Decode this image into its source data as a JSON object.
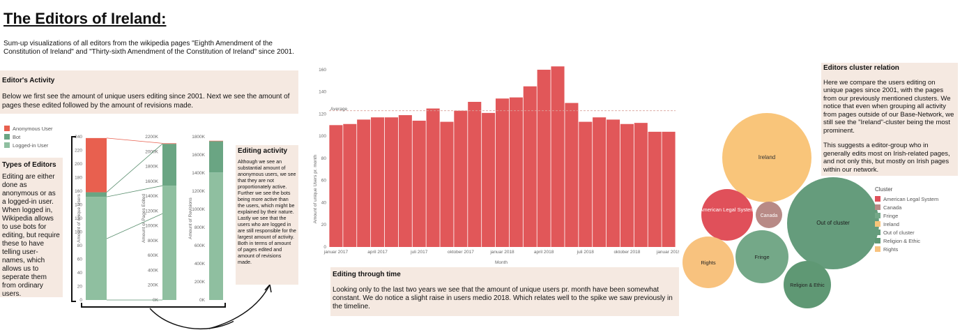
{
  "page": {
    "title": "The Editors of Ireland:",
    "intro": "Sum-up visualizations of all editors from the wikipedia pages \"Eighth Amendment of the Constitution of Ireland\" and \"Thirty-sixth Amendment of the Constitution of Ireland\" since 2001."
  },
  "activity": {
    "title": "Editor's Activity",
    "body": "Below we first see the amount of unique users editing since 2001. Next we see the amount of pages these edited followed by the amount of revisions made."
  },
  "types": {
    "title": "Types of Editors",
    "body": "Editing are either done as anonymous or as a logged-in user. When logged in, Wikipedia allows to use bots for editing, but require these to have telling user-names, which allows us to seperate them from ordinary users."
  },
  "editing_activity": {
    "title": "Editing activity",
    "body": "Although we see an substantial amount of anonymous users, we see that they are not proportionately active. Further we see the bots being more active than the users, which might be explained by their nature. Lastly we see that the users who are logged in are still responsible for the largest amount of activity. Both in terms of amount of pages edited and amount of revisions made."
  },
  "editing_time": {
    "title": "Editing through time",
    "body": "Looking only to the last two years we see that the amount of unique users pr. month have been somewhat constant. We do notice a slight raise in users medio 2018. Which relates well to the spike we saw previously in the timeline."
  },
  "cluster_text": {
    "title": "Editors cluster relation",
    "p1": "Here we compare the users editing on unique pages since 2001, with the pages from our previously mentioned clusters. We notice that even when grouping all activity from pages outside of our Base-Network, we still see the \"Ireland\"-cluster being the most prominent.",
    "p2": "This suggests a editor-group who in generally edits most on Irish-related pages, and not only this, but mostly on Irish pages within our network."
  },
  "colors": {
    "anonymous": "#e8604f",
    "bot": "#6aa583",
    "logged_in": "#8fbfa0",
    "bar": "#e15759",
    "bubble_ireland": "#f9c57a",
    "bubble_outofcluster": "#659c7c",
    "bubble_american": "#e0505a",
    "bubble_canada": "#b88a86",
    "bubble_fringe": "#74a888",
    "bubble_rights": "#f8c27e",
    "bubble_religion": "#5f9874"
  },
  "editor_types_legend": [
    "Anonymous User",
    "Bot",
    "Logged-in User"
  ],
  "chart_data": [
    {
      "type": "bar",
      "subtype": "stacked",
      "ylabel": "Amount of unique Users",
      "ylim": [
        0,
        250
      ],
      "yticks": [
        "240",
        "220",
        "200",
        "180",
        "160",
        "140",
        "120",
        "100",
        "80",
        "60",
        "40",
        "20",
        "0"
      ],
      "series": [
        {
          "name": "Logged-in User",
          "values": [
            158
          ]
        },
        {
          "name": "Bot",
          "values": [
            7
          ]
        },
        {
          "name": "Anonymous User",
          "values": [
            83
          ]
        }
      ]
    },
    {
      "type": "bar",
      "subtype": "stacked",
      "ylabel": "Amount of Pages Edited",
      "ylim": [
        0,
        2300000
      ],
      "yticks": [
        "2200K",
        "2000K",
        "1800K",
        "1600K",
        "1400K",
        "1200K",
        "1000K",
        "800K",
        "600K",
        "400K",
        "200K",
        "0K"
      ],
      "series": [
        {
          "name": "Logged-in User",
          "values": [
            1610000
          ]
        },
        {
          "name": "Bot",
          "values": [
            590000
          ]
        },
        {
          "name": "Anonymous User",
          "values": [
            8000
          ]
        }
      ]
    },
    {
      "type": "bar",
      "subtype": "stacked",
      "ylabel": "Amount of Revisions",
      "ylim": [
        0,
        1830000
      ],
      "yticks": [
        "1800K",
        "1600K",
        "1400K",
        "1200K",
        "1000K",
        "800K",
        "600K",
        "400K",
        "200K",
        "0K"
      ],
      "series": [
        {
          "name": "Logged-in User",
          "values": [
            1430000
          ]
        },
        {
          "name": "Bot",
          "values": [
            350000
          ]
        },
        {
          "name": "Anonymous User",
          "values": [
            5000
          ]
        }
      ]
    },
    {
      "type": "bar",
      "xlabel": "Month",
      "ylabel": "Amount of unique Users pr. month",
      "ylim": [
        0,
        165
      ],
      "yticks": [
        "160",
        "140",
        "120",
        "100",
        "80",
        "60",
        "40",
        "20",
        "0"
      ],
      "xticks": [
        "januar 2017",
        "april 2017",
        "juli 2017",
        "oktober 2017",
        "januar 2018",
        "april 2018",
        "juli 2018",
        "oktober 2018",
        "januar 2019",
        "april 2019"
      ],
      "reference_line": {
        "label": "Average",
        "value": 123
      },
      "values": [
        110,
        111,
        115,
        117,
        117,
        119,
        114,
        125,
        113,
        123,
        131,
        121,
        134,
        135,
        145,
        160,
        163,
        130,
        113,
        117,
        115,
        111,
        112,
        104,
        104
      ]
    },
    {
      "type": "bubble",
      "legend_title": "Cluster",
      "categories": [
        "American Legal System",
        "Canada",
        "Fringe",
        "Ireland",
        "Out of cluster",
        "Religion & Ethic",
        "Rights"
      ],
      "labels": {
        "ireland": "Ireland",
        "american": "American Legal System",
        "canada": "Canada",
        "outofcluster": "Out of cluster",
        "rights": "Rights",
        "fringe": "Fringe",
        "religion": "Religion & Ethic"
      }
    }
  ]
}
